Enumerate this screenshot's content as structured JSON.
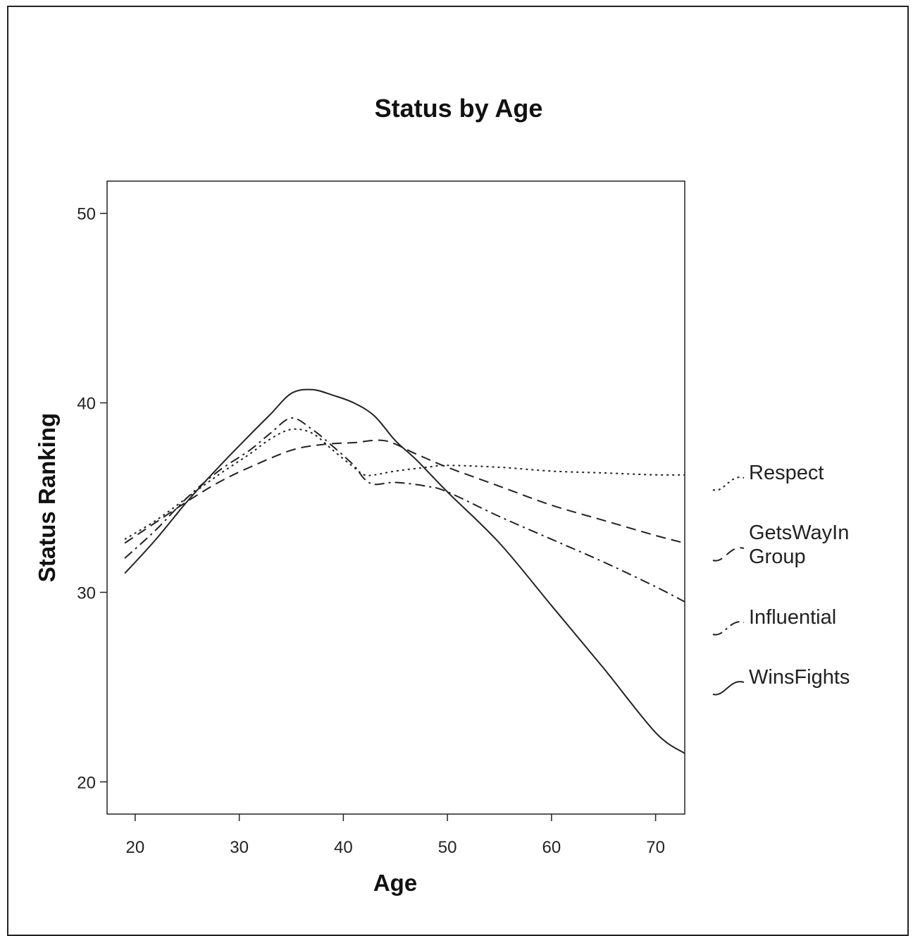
{
  "chart_data": {
    "type": "line",
    "title": "Status by Age",
    "xlabel": "Age",
    "ylabel": "Status Ranking",
    "xlim": [
      17.3,
      72.8
    ],
    "ylim": [
      18.3,
      51.7
    ],
    "x_ticks": [
      20,
      30,
      40,
      50,
      60,
      70
    ],
    "y_ticks": [
      20,
      30,
      40,
      50
    ],
    "grid": false,
    "legend_position": "right",
    "series": [
      {
        "name": "Respect",
        "dash": "dotted",
        "points": [
          [
            19,
            32.8
          ],
          [
            22,
            33.8
          ],
          [
            25,
            35.0
          ],
          [
            28,
            36.2
          ],
          [
            31,
            37.3
          ],
          [
            33,
            38.1
          ],
          [
            35,
            38.6
          ],
          [
            37,
            38.4
          ],
          [
            39,
            37.5
          ],
          [
            41,
            36.6
          ],
          [
            42,
            36.2
          ],
          [
            43,
            36.2
          ],
          [
            45,
            36.4
          ],
          [
            48,
            36.6
          ],
          [
            50,
            36.7
          ],
          [
            55,
            36.6
          ],
          [
            60,
            36.4
          ],
          [
            65,
            36.3
          ],
          [
            70,
            36.2
          ],
          [
            72.8,
            36.2
          ]
        ]
      },
      {
        "name": "GetsWayIn Group",
        "dash": "dashed",
        "points": [
          [
            19,
            32.6
          ],
          [
            22,
            33.7
          ],
          [
            25,
            34.8
          ],
          [
            28,
            35.8
          ],
          [
            31,
            36.6
          ],
          [
            35,
            37.5
          ],
          [
            38,
            37.8
          ],
          [
            41,
            37.9
          ],
          [
            44,
            38.0
          ],
          [
            47,
            37.3
          ],
          [
            50,
            36.6
          ],
          [
            55,
            35.6
          ],
          [
            60,
            34.6
          ],
          [
            65,
            33.8
          ],
          [
            70,
            33.0
          ],
          [
            72.8,
            32.6
          ]
        ]
      },
      {
        "name": "Influential",
        "dash": "dashdot",
        "points": [
          [
            19,
            31.8
          ],
          [
            22,
            33.3
          ],
          [
            25,
            35.0
          ],
          [
            28,
            36.4
          ],
          [
            31,
            37.5
          ],
          [
            33,
            38.4
          ],
          [
            35,
            39.2
          ],
          [
            37,
            38.6
          ],
          [
            39,
            37.7
          ],
          [
            41,
            36.7
          ],
          [
            42,
            36.0
          ],
          [
            43,
            35.7
          ],
          [
            45,
            35.8
          ],
          [
            48,
            35.6
          ],
          [
            50,
            35.3
          ],
          [
            55,
            34.0
          ],
          [
            60,
            32.8
          ],
          [
            65,
            31.6
          ],
          [
            70,
            30.3
          ],
          [
            72.8,
            29.5
          ]
        ]
      },
      {
        "name": "WinsFights",
        "dash": "solid",
        "points": [
          [
            19,
            31.0
          ],
          [
            22,
            32.8
          ],
          [
            25,
            34.8
          ],
          [
            28,
            36.6
          ],
          [
            31,
            38.3
          ],
          [
            33,
            39.4
          ],
          [
            35,
            40.5
          ],
          [
            37,
            40.7
          ],
          [
            39,
            40.4
          ],
          [
            41,
            40.0
          ],
          [
            43,
            39.3
          ],
          [
            45,
            38.0
          ],
          [
            47,
            37.0
          ],
          [
            50,
            35.3
          ],
          [
            55,
            32.6
          ],
          [
            60,
            29.3
          ],
          [
            65,
            26.0
          ],
          [
            70,
            22.6
          ],
          [
            72.8,
            21.5
          ]
        ]
      }
    ]
  }
}
